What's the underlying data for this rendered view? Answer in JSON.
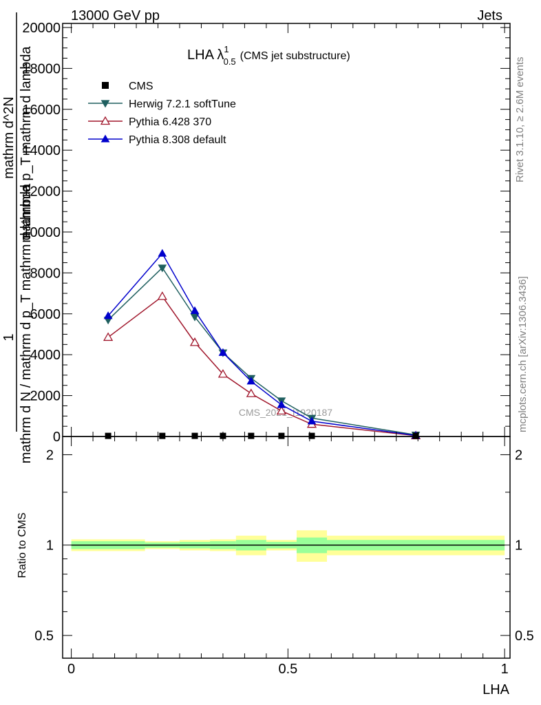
{
  "header": {
    "left": "13000 GeV pp",
    "right": "Jets"
  },
  "chart_data": {
    "type": "line",
    "title_main": "LHA λ",
    "title_sup": "1",
    "title_sub": "0.5",
    "title_note": "(CMS jet substructure)",
    "watermark": "CMS_2021_I1920187",
    "side_label_top": "Rivet 3.1.10, ≥ 2.6M events",
    "side_label_bottom": "mcplots.cern.ch [arXiv:1306.3436]",
    "ylabel_numerator": "1",
    "ylabel_denominator": "mathrm d N / mathrm d p_T mathrm d lambda",
    "ylabel_part2_numerator": "mathrm d^2N",
    "ylabel_part2_denominator": "mathrm d p_T mathrm d lambda",
    "xlabel": "LHA",
    "ratio_ylabel": "Ratio to CMS",
    "xlim": [
      -0.02,
      1.0125
    ],
    "ylim": [
      0,
      20200
    ],
    "ratio_ylim": [
      0.42,
      2.3
    ],
    "x_ticks": [
      0,
      0.5,
      1
    ],
    "x_tick_labels": [
      "0",
      "0.5",
      "1"
    ],
    "y_ticks": [
      0,
      2000,
      4000,
      6000,
      8000,
      10000,
      12000,
      14000,
      16000,
      18000,
      20000
    ],
    "y_tick_labels": [
      "0",
      "2000",
      "4000",
      "6000",
      "8000",
      "10000",
      "12000",
      "14000",
      "16000",
      "18000",
      "20000"
    ],
    "ratio_ticks": [
      0.5,
      1,
      2
    ],
    "ratio_tick_labels": [
      "0.5",
      "1",
      "2"
    ],
    "bins": [
      [
        0,
        0.17
      ],
      [
        0.17,
        0.25
      ],
      [
        0.25,
        0.32
      ],
      [
        0.32,
        0.38
      ],
      [
        0.38,
        0.45
      ],
      [
        0.45,
        0.52
      ],
      [
        0.52,
        0.59
      ],
      [
        0.59,
        1.0
      ]
    ],
    "cms": {
      "name": "CMS",
      "x": [
        0.085,
        0.21,
        0.285,
        0.35,
        0.415,
        0.485,
        0.555,
        0.795
      ],
      "y": [
        30,
        30,
        30,
        30,
        30,
        30,
        30,
        30
      ]
    },
    "series": [
      {
        "name": "Herwig 7.2.1 softTune",
        "color": "#1f5f5f",
        "marker": "triangle-down",
        "x": [
          0.085,
          0.21,
          0.285,
          0.35,
          0.415,
          0.485,
          0.555,
          0.795
        ],
        "y": [
          5700,
          8250,
          5850,
          4100,
          2850,
          1750,
          900,
          80
        ]
      },
      {
        "name": "Pythia 6.428 370",
        "color": "#a0162b",
        "marker": "triangle-up-open",
        "x": [
          0.085,
          0.21,
          0.285,
          0.35,
          0.415,
          0.485,
          0.555,
          0.795
        ],
        "y": [
          4850,
          6850,
          4600,
          3050,
          2100,
          1250,
          600,
          40
        ]
      },
      {
        "name": "Pythia 8.308 default",
        "color": "#0000cc",
        "marker": "triangle-up",
        "x": [
          0.085,
          0.21,
          0.285,
          0.35,
          0.415,
          0.485,
          0.555,
          0.795
        ],
        "y": [
          5900,
          8950,
          6150,
          4100,
          2700,
          1550,
          750,
          50
        ]
      }
    ],
    "ratio_bands": {
      "yellow": [
        [
          0.955,
          1.045
        ],
        [
          0.97,
          1.03
        ],
        [
          0.96,
          1.04
        ],
        [
          0.955,
          1.045
        ],
        [
          0.925,
          1.075
        ],
        [
          0.96,
          1.04
        ],
        [
          0.88,
          1.12
        ],
        [
          0.925,
          1.075
        ]
      ],
      "green": [
        [
          0.97,
          1.03
        ],
        [
          0.98,
          1.02
        ],
        [
          0.975,
          1.025
        ],
        [
          0.97,
          1.03
        ],
        [
          0.96,
          1.04
        ],
        [
          0.975,
          1.025
        ],
        [
          0.94,
          1.06
        ],
        [
          0.96,
          1.04
        ]
      ]
    },
    "colors": {
      "band_yellow": "#ffff99",
      "band_green": "#99ff99"
    }
  }
}
